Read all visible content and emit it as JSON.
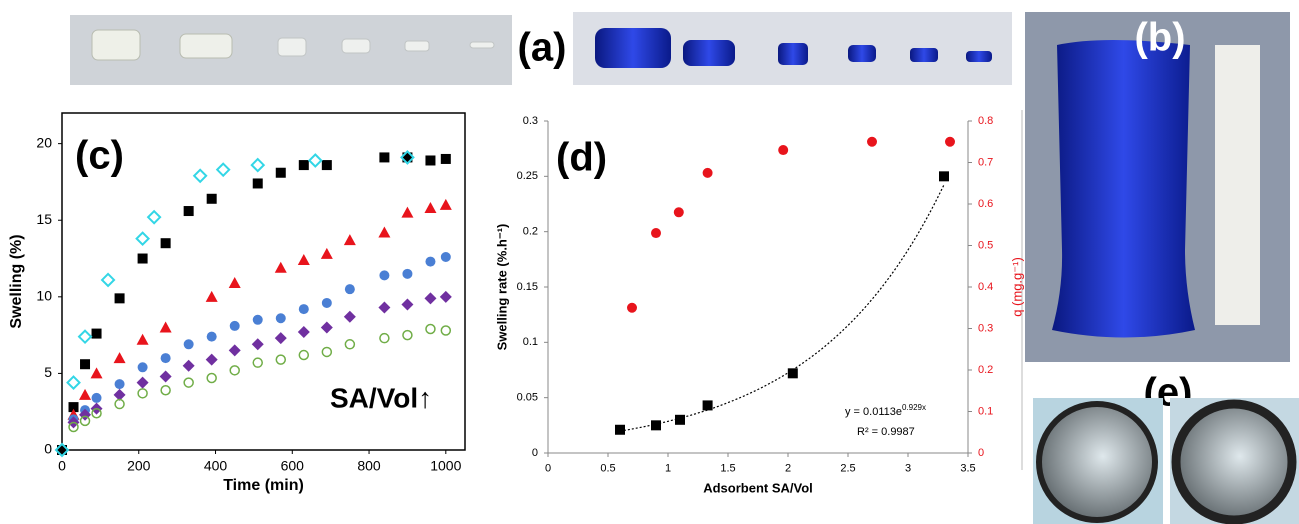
{
  "panel_labels": [
    "(a)",
    "(b)",
    "(e)"
  ],
  "chart_data": [
    {
      "type": "scatter",
      "title": "(c)",
      "annotation": "SA/Vol↑",
      "x_label": "Time (min)",
      "y_label": "Swelling (%)",
      "xlim": [
        0,
        1050
      ],
      "xticks": [
        0,
        200,
        400,
        600,
        800,
        1000
      ],
      "ylim": [
        0,
        22
      ],
      "yticks": [
        0,
        5,
        10,
        15,
        20
      ],
      "frame": true,
      "series": [
        {
          "color": "#000000",
          "marker": "square",
          "x": [
            0,
            30,
            60,
            90,
            150,
            210,
            270,
            330,
            390,
            510,
            570,
            630,
            690,
            840,
            900,
            960,
            1000
          ],
          "values": [
            0,
            2.8,
            5.6,
            7.6,
            9.9,
            12.5,
            13.5,
            15.6,
            16.4,
            17.4,
            18.1,
            18.6,
            18.6,
            19.1,
            19.1,
            18.9,
            19.0
          ]
        },
        {
          "color": "#33d6e6",
          "marker": "diamond-open",
          "x": [
            0,
            30,
            60,
            120,
            210,
            240,
            360,
            420,
            510,
            660,
            900
          ],
          "values": [
            0,
            4.4,
            7.4,
            11.1,
            13.8,
            15.2,
            17.9,
            18.3,
            18.6,
            18.9,
            19.1
          ]
        },
        {
          "color": "#e8141c",
          "marker": "triangle",
          "x": [
            30,
            60,
            90,
            150,
            210,
            270,
            390,
            450,
            570,
            630,
            690,
            750,
            840,
            900,
            960,
            1000
          ],
          "values": [
            2.3,
            3.6,
            5.0,
            6.0,
            7.2,
            8.0,
            10.0,
            10.9,
            11.9,
            12.4,
            12.8,
            13.7,
            14.2,
            15.5,
            15.8,
            16.0
          ]
        },
        {
          "color": "#4a7fd4",
          "marker": "circle",
          "x": [
            30,
            60,
            90,
            150,
            210,
            270,
            330,
            390,
            450,
            510,
            570,
            630,
            690,
            750,
            840,
            900,
            960,
            1000
          ],
          "values": [
            2.0,
            2.6,
            3.4,
            4.3,
            5.4,
            6.0,
            6.9,
            7.4,
            8.1,
            8.5,
            8.6,
            9.2,
            9.6,
            10.5,
            11.4,
            11.5,
            12.3,
            12.6
          ]
        },
        {
          "color": "#7030a0",
          "marker": "diamond",
          "x": [
            30,
            60,
            90,
            150,
            210,
            270,
            330,
            390,
            450,
            510,
            570,
            630,
            690,
            750,
            840,
            900,
            960,
            1000
          ],
          "values": [
            1.8,
            2.3,
            2.7,
            3.6,
            4.4,
            4.8,
            5.5,
            5.9,
            6.5,
            6.9,
            7.3,
            7.7,
            8.0,
            8.7,
            9.3,
            9.5,
            9.9,
            10.0
          ]
        },
        {
          "color": "#70ad47",
          "marker": "circle-open",
          "x": [
            30,
            60,
            90,
            150,
            210,
            270,
            330,
            390,
            450,
            510,
            570,
            630,
            690,
            750,
            840,
            900,
            960,
            1000
          ],
          "values": [
            1.5,
            1.9,
            2.4,
            3.0,
            3.7,
            3.9,
            4.4,
            4.7,
            5.2,
            5.7,
            5.9,
            6.2,
            6.4,
            6.9,
            7.3,
            7.5,
            7.9,
            7.8
          ]
        }
      ]
    },
    {
      "type": "scatter",
      "title": "(d)",
      "x_label": "Adsorbent SA/Vol",
      "y_label": "Swelling rate (%.h⁻¹)",
      "y2_label": "q (mg.g⁻¹)",
      "y2_color": "#e8141c",
      "xlim": [
        0,
        3.5
      ],
      "xticks": [
        0,
        0.5,
        1,
        1.5,
        2,
        2.5,
        3,
        3.5
      ],
      "ylim": [
        0,
        0.3
      ],
      "yticks": [
        0,
        0.05,
        0.1,
        0.15,
        0.2,
        0.25,
        0.3
      ],
      "y2lim": [
        0,
        0.8
      ],
      "y2ticks": [
        0,
        0.1,
        0.2,
        0.3,
        0.4,
        0.5,
        0.6,
        0.7,
        0.8
      ],
      "frame": false,
      "series": [
        {
          "color": "#000000",
          "marker": "square",
          "x": [
            0.6,
            0.9,
            1.1,
            1.33,
            2.04,
            3.3
          ],
          "values": [
            0.021,
            0.025,
            0.03,
            0.043,
            0.072,
            0.25
          ]
        },
        {
          "color": "#e8141c",
          "marker": "circle",
          "axis": "y2",
          "x": [
            0.7,
            0.9,
            1.09,
            1.33,
            1.96,
            2.7,
            3.35
          ],
          "values": [
            0.35,
            0.53,
            0.58,
            0.675,
            0.73,
            0.75,
            0.75
          ]
        }
      ],
      "trendline": {
        "type": "exponential",
        "a": 0.0113,
        "b": 0.929,
        "equation": "y = 0.0113e",
        "equation_exp": "0.929x",
        "r2_label": "R² = 0.9987"
      }
    }
  ]
}
